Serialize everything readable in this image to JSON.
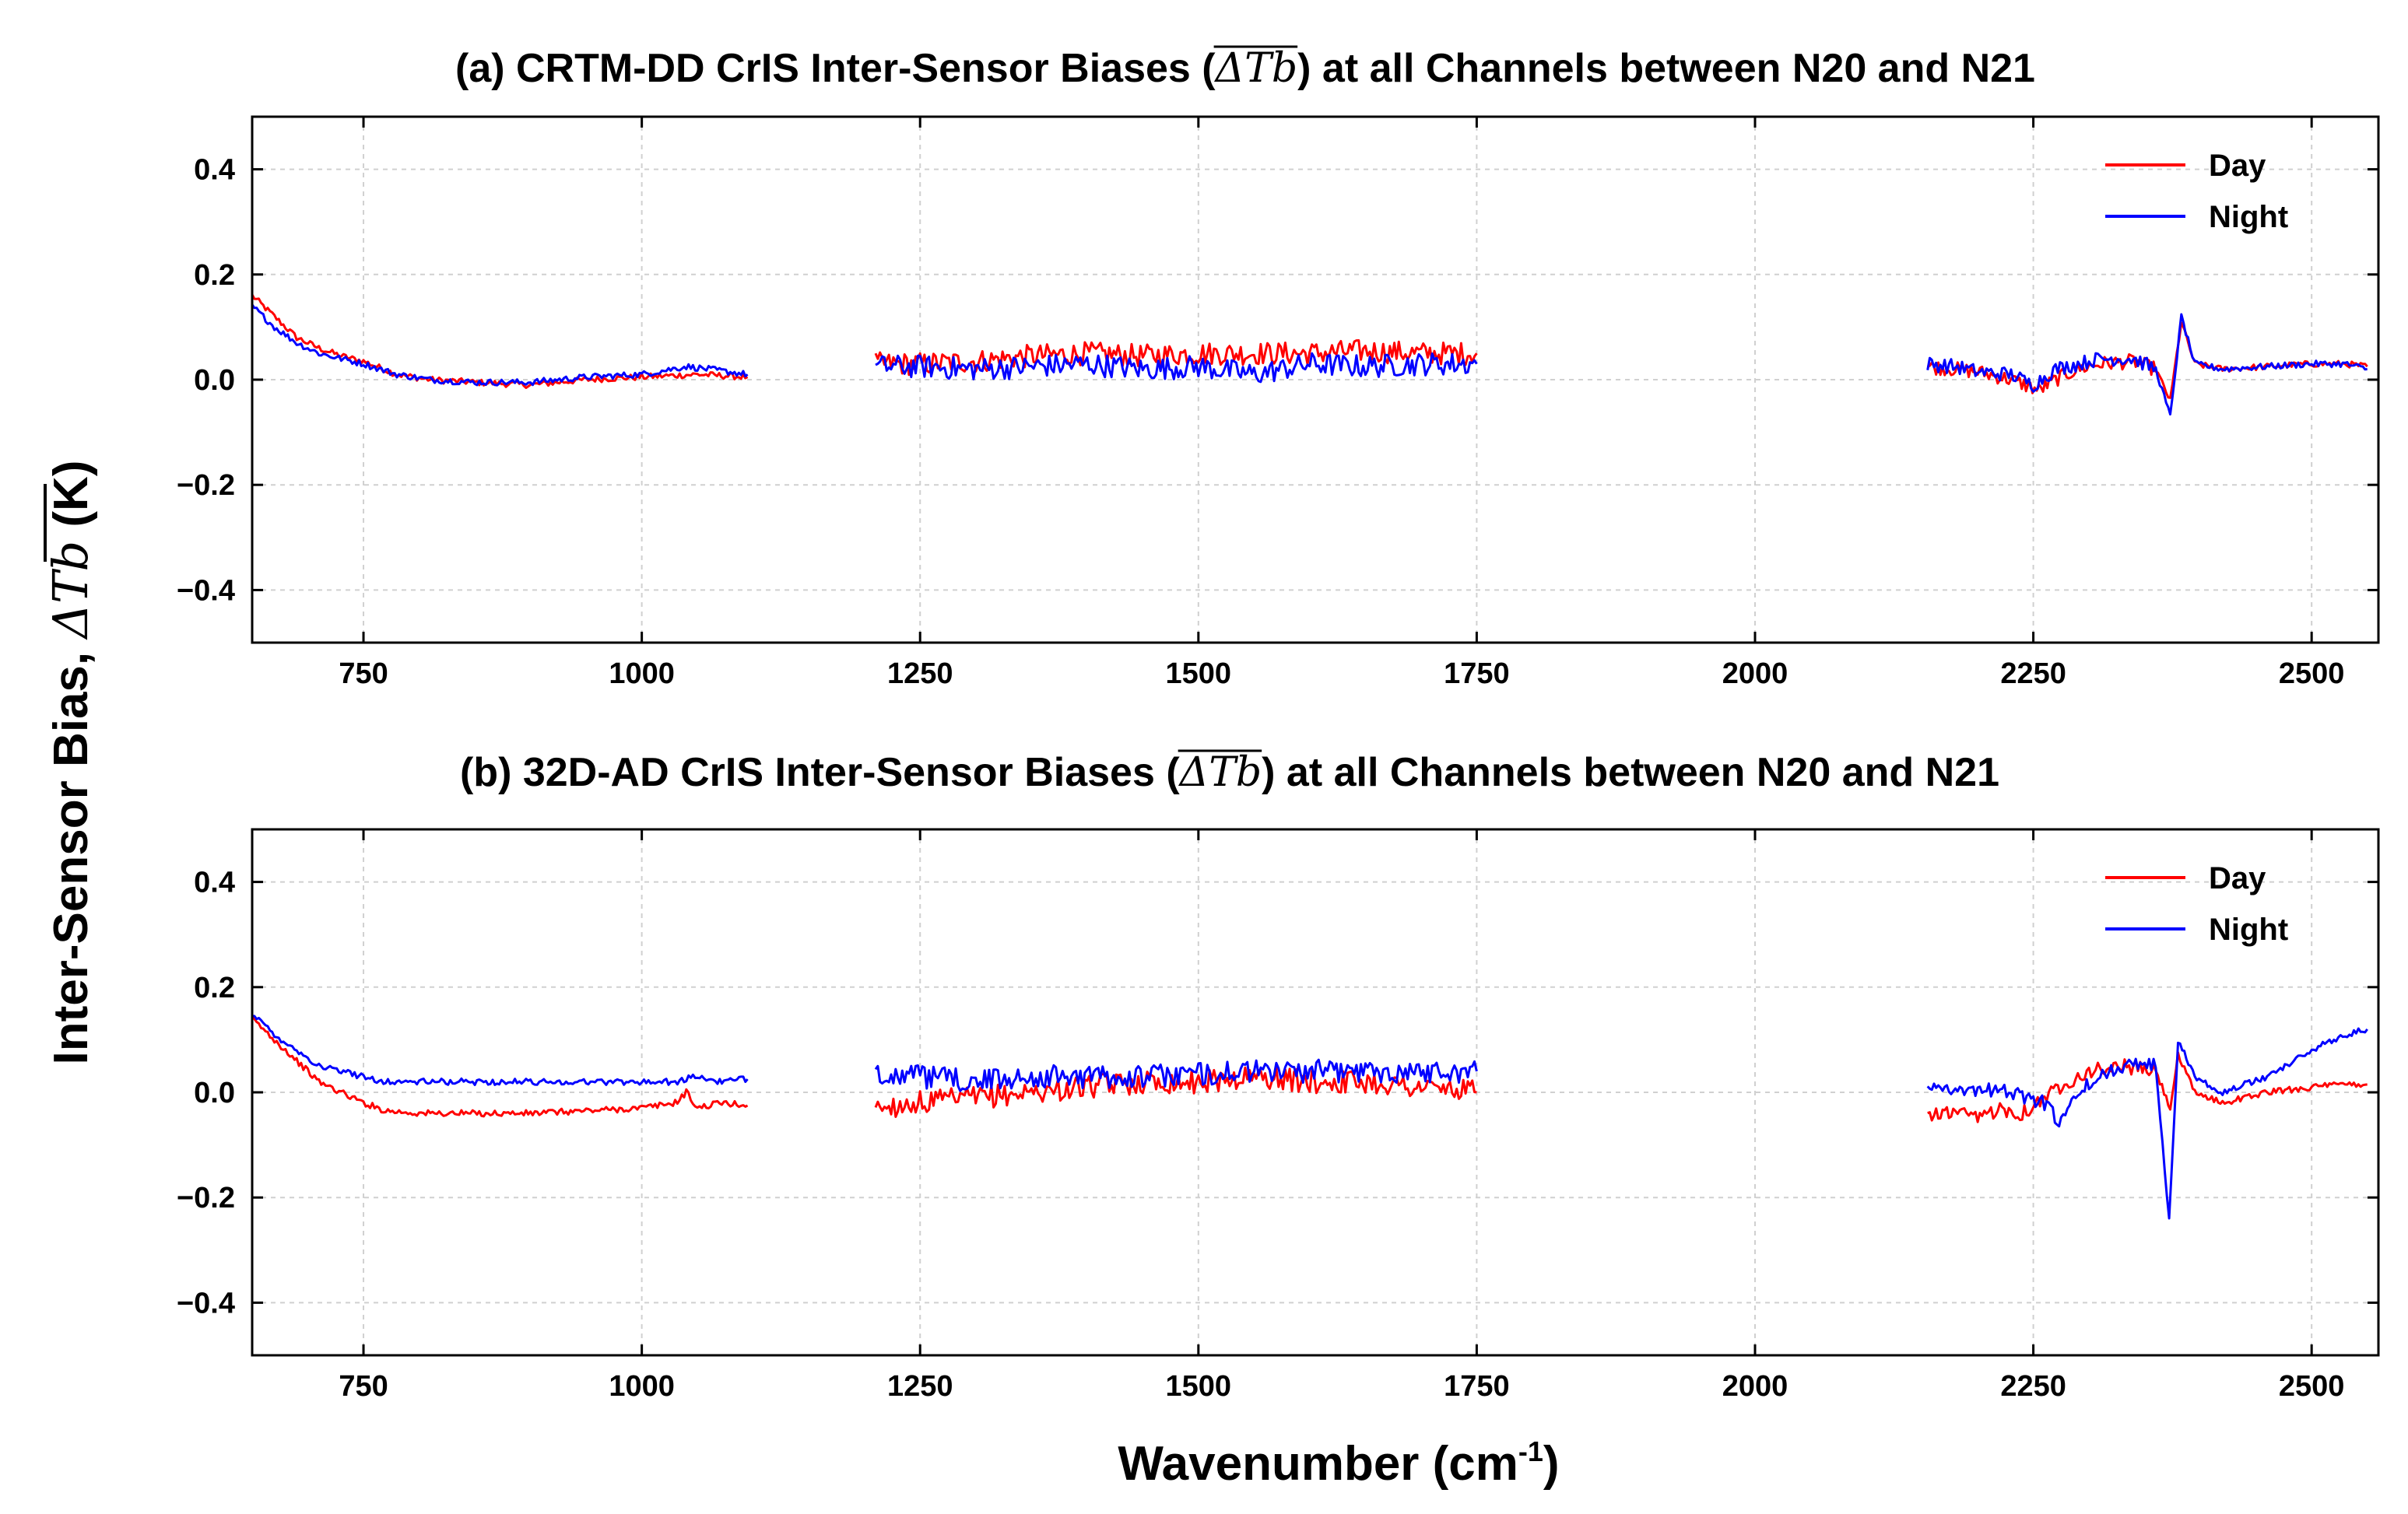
{
  "figure": {
    "ylabel": "Inter-Sensor Bias, ",
    "ylabel_symbol": "ΔTb",
    "ylabel_unit": " (K)",
    "xlabel": "Wavenumber (cm",
    "xlabel_sup": "-1",
    "xlabel_end": ")"
  },
  "chart_data": [
    {
      "type": "line",
      "title_prefix": "(a) CRTM-DD CrIS Inter-Sensor Biases (",
      "title_symbol": "ΔTb",
      "title_suffix": ") at all Channels between N20 and N21",
      "xlim": [
        650,
        2560
      ],
      "ylim": [
        -0.5,
        0.5
      ],
      "xticks": [
        750,
        1000,
        1250,
        1500,
        1750,
        2000,
        2250,
        2500
      ],
      "xtick_labels": [
        "750",
        "1000",
        "1250",
        "1500",
        "1750",
        "2000",
        "2250",
        "2500"
      ],
      "yticks": [
        0.4,
        0.2,
        0.0,
        -0.2,
        -0.4
      ],
      "ytick_labels": [
        "0.4",
        "0.2",
        "0.0",
        "−0.2",
        "−0.4"
      ],
      "legend_position": "top-right",
      "series": [
        {
          "name": "Day",
          "color": "#ff0000",
          "segments": [
            [
              [
                650,
                0.16
              ],
              [
                670,
                0.12
              ],
              [
                690,
                0.08
              ],
              [
                710,
                0.06
              ],
              [
                730,
                0.045
              ],
              [
                750,
                0.035
              ],
              [
                780,
                0.01
              ],
              [
                810,
                0.0
              ],
              [
                850,
                -0.005
              ],
              [
                900,
                -0.01
              ],
              [
                950,
                0.0
              ],
              [
                1000,
                0.005
              ],
              [
                1050,
                0.01
              ],
              [
                1095,
                0.005
              ]
            ],
            [
              [
                1210,
                0.03
              ],
              [
                1250,
                0.03
              ],
              [
                1300,
                0.035
              ],
              [
                1350,
                0.045
              ],
              [
                1400,
                0.05
              ],
              [
                1450,
                0.045
              ],
              [
                1500,
                0.05
              ],
              [
                1550,
                0.05
              ],
              [
                1600,
                0.05
              ],
              [
                1650,
                0.055
              ],
              [
                1700,
                0.05
              ],
              [
                1750,
                0.05
              ]
            ],
            [
              [
                2155,
                0.025
              ],
              [
                2180,
                0.02
              ],
              [
                2200,
                0.015
              ],
              [
                2230,
                0.0
              ],
              [
                2255,
                -0.02
              ],
              [
                2270,
                0.0
              ],
              [
                2290,
                0.02
              ],
              [
                2310,
                0.03
              ],
              [
                2340,
                0.035
              ],
              [
                2360,
                0.02
              ],
              [
                2373,
                -0.04
              ],
              [
                2383,
                0.11
              ],
              [
                2395,
                0.03
              ],
              [
                2420,
                0.02
              ],
              [
                2460,
                0.025
              ],
              [
                2500,
                0.03
              ],
              [
                2530,
                0.03
              ],
              [
                2550,
                0.025
              ]
            ]
          ]
        },
        {
          "name": "Night",
          "color": "#0000ff",
          "segments": [
            [
              [
                650,
                0.14
              ],
              [
                670,
                0.1
              ],
              [
                690,
                0.07
              ],
              [
                710,
                0.05
              ],
              [
                730,
                0.04
              ],
              [
                750,
                0.03
              ],
              [
                780,
                0.01
              ],
              [
                810,
                0.0
              ],
              [
                850,
                -0.005
              ],
              [
                900,
                -0.005
              ],
              [
                950,
                0.005
              ],
              [
                1000,
                0.01
              ],
              [
                1040,
                0.025
              ],
              [
                1060,
                0.02
              ],
              [
                1095,
                0.01
              ]
            ],
            [
              [
                1210,
                0.025
              ],
              [
                1250,
                0.025
              ],
              [
                1300,
                0.02
              ],
              [
                1350,
                0.025
              ],
              [
                1400,
                0.03
              ],
              [
                1450,
                0.02
              ],
              [
                1500,
                0.025
              ],
              [
                1550,
                0.01
              ],
              [
                1600,
                0.03
              ],
              [
                1650,
                0.025
              ],
              [
                1700,
                0.03
              ],
              [
                1750,
                0.03
              ]
            ],
            [
              [
                2155,
                0.03
              ],
              [
                2180,
                0.025
              ],
              [
                2200,
                0.015
              ],
              [
                2230,
                0.01
              ],
              [
                2250,
                -0.01
              ],
              [
                2270,
                0.02
              ],
              [
                2290,
                0.03
              ],
              [
                2310,
                0.04
              ],
              [
                2340,
                0.04
              ],
              [
                2360,
                0.02
              ],
              [
                2373,
                -0.07
              ],
              [
                2383,
                0.12
              ],
              [
                2395,
                0.03
              ],
              [
                2420,
                0.02
              ],
              [
                2460,
                0.025
              ],
              [
                2500,
                0.03
              ],
              [
                2530,
                0.03
              ],
              [
                2550,
                0.02
              ]
            ]
          ]
        }
      ]
    },
    {
      "type": "line",
      "title_prefix": "(b) 32D-AD CrIS Inter-Sensor Biases (",
      "title_symbol": "ΔTb",
      "title_suffix": ") at all Channels between N20 and N21",
      "xlim": [
        650,
        2560
      ],
      "ylim": [
        -0.5,
        0.5
      ],
      "xticks": [
        750,
        1000,
        1250,
        1500,
        1750,
        2000,
        2250,
        2500
      ],
      "xtick_labels": [
        "750",
        "1000",
        "1250",
        "1500",
        "1750",
        "2000",
        "2250",
        "2500"
      ],
      "yticks": [
        0.4,
        0.2,
        0.0,
        -0.2,
        -0.4
      ],
      "ytick_labels": [
        "0.4",
        "0.2",
        "0.0",
        "−0.2",
        "−0.4"
      ],
      "legend_position": "top-right",
      "series": [
        {
          "name": "Day",
          "color": "#ff0000",
          "segments": [
            [
              [
                650,
                0.14
              ],
              [
                670,
                0.1
              ],
              [
                690,
                0.06
              ],
              [
                710,
                0.02
              ],
              [
                730,
                0.0
              ],
              [
                750,
                -0.02
              ],
              [
                770,
                -0.035
              ],
              [
                800,
                -0.04
              ],
              [
                850,
                -0.04
              ],
              [
                900,
                -0.04
              ],
              [
                950,
                -0.035
              ],
              [
                1000,
                -0.03
              ],
              [
                1030,
                -0.02
              ],
              [
                1040,
                0.0
              ],
              [
                1050,
                -0.03
              ],
              [
                1070,
                -0.02
              ],
              [
                1095,
                -0.025
              ]
            ],
            [
              [
                1210,
                -0.03
              ],
              [
                1250,
                -0.02
              ],
              [
                1300,
                -0.01
              ],
              [
                1350,
                0.0
              ],
              [
                1400,
                0.01
              ],
              [
                1450,
                0.02
              ],
              [
                1500,
                0.02
              ],
              [
                1550,
                0.03
              ],
              [
                1600,
                0.02
              ],
              [
                1650,
                0.02
              ],
              [
                1700,
                0.01
              ],
              [
                1750,
                0.0
              ]
            ],
            [
              [
                2155,
                -0.04
              ],
              [
                2180,
                -0.04
              ],
              [
                2200,
                -0.05
              ],
              [
                2220,
                -0.03
              ],
              [
                2240,
                -0.04
              ],
              [
                2260,
                -0.01
              ],
              [
                2280,
                0.02
              ],
              [
                2300,
                0.04
              ],
              [
                2330,
                0.05
              ],
              [
                2360,
                0.04
              ],
              [
                2373,
                -0.03
              ],
              [
                2380,
                0.07
              ],
              [
                2395,
                0.0
              ],
              [
                2420,
                -0.02
              ],
              [
                2460,
                0.0
              ],
              [
                2500,
                0.01
              ],
              [
                2530,
                0.015
              ],
              [
                2550,
                0.015
              ]
            ]
          ]
        },
        {
          "name": "Night",
          "color": "#0000ff",
          "segments": [
            [
              [
                650,
                0.15
              ],
              [
                670,
                0.11
              ],
              [
                690,
                0.08
              ],
              [
                710,
                0.05
              ],
              [
                730,
                0.04
              ],
              [
                750,
                0.03
              ],
              [
                770,
                0.02
              ],
              [
                800,
                0.02
              ],
              [
                850,
                0.02
              ],
              [
                900,
                0.02
              ],
              [
                950,
                0.02
              ],
              [
                1000,
                0.02
              ],
              [
                1030,
                0.02
              ],
              [
                1050,
                0.03
              ],
              [
                1070,
                0.02
              ],
              [
                1095,
                0.025
              ]
            ],
            [
              [
                1210,
                0.04
              ],
              [
                1250,
                0.03
              ],
              [
                1300,
                0.02
              ],
              [
                1350,
                0.03
              ],
              [
                1400,
                0.03
              ],
              [
                1450,
                0.03
              ],
              [
                1500,
                0.035
              ],
              [
                1550,
                0.04
              ],
              [
                1600,
                0.04
              ],
              [
                1650,
                0.04
              ],
              [
                1700,
                0.04
              ],
              [
                1750,
                0.04
              ]
            ],
            [
              [
                2155,
                0.01
              ],
              [
                2180,
                0.01
              ],
              [
                2200,
                0.0
              ],
              [
                2220,
                0.01
              ],
              [
                2240,
                -0.01
              ],
              [
                2260,
                -0.02
              ],
              [
                2275,
                -0.06
              ],
              [
                2290,
                0.0
              ],
              [
                2310,
                0.03
              ],
              [
                2340,
                0.06
              ],
              [
                2360,
                0.05
              ],
              [
                2372,
                -0.24
              ],
              [
                2380,
                0.1
              ],
              [
                2395,
                0.03
              ],
              [
                2420,
                0.0
              ],
              [
                2460,
                0.03
              ],
              [
                2500,
                0.08
              ],
              [
                2530,
                0.11
              ],
              [
                2550,
                0.12
              ]
            ]
          ]
        }
      ]
    }
  ]
}
